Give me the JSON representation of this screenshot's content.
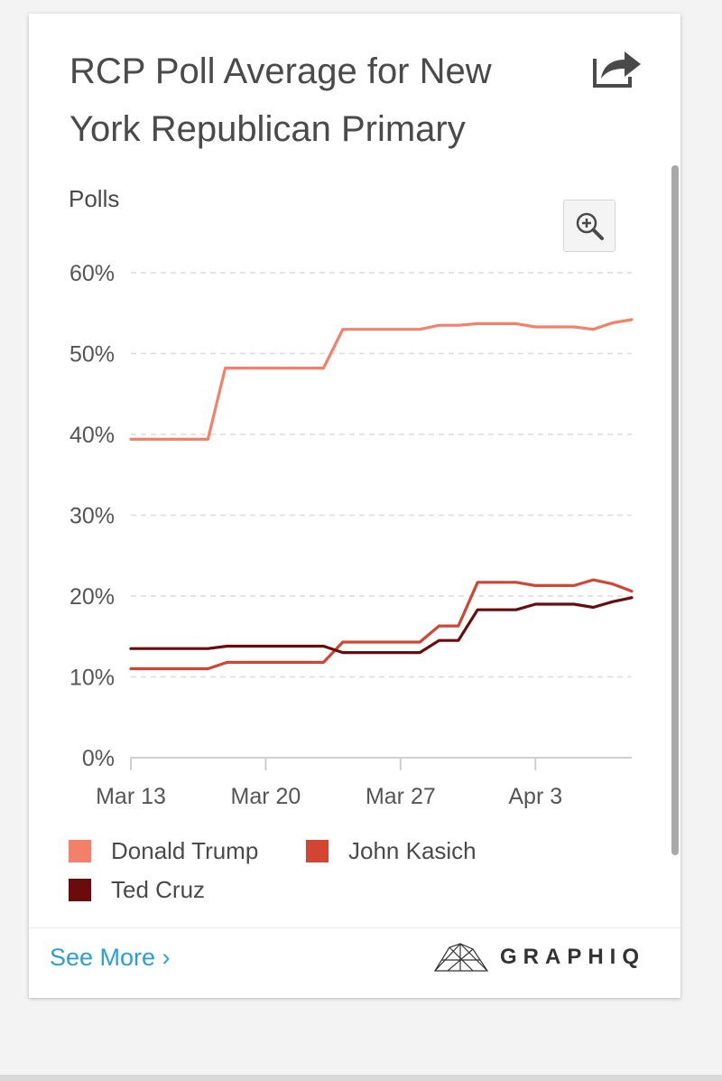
{
  "card": {
    "title": "RCP Poll Average for New York Republican Primary",
    "share_icon": "share-icon",
    "zoom_icon": "zoom-in-icon"
  },
  "chart_data": {
    "type": "line",
    "title": "RCP Poll Average for New York Republican Primary",
    "ylabel": "Polls",
    "xlabel": "",
    "ylim": [
      0,
      60
    ],
    "yticks": [
      0,
      10,
      20,
      30,
      40,
      50,
      60
    ],
    "ytick_labels": [
      "0%",
      "10%",
      "20%",
      "30%",
      "40%",
      "50%",
      "60%"
    ],
    "xticks": [
      0,
      7,
      14,
      21
    ],
    "xtick_labels": [
      "Mar 13",
      "Mar 20",
      "Mar 27",
      "Apr 3"
    ],
    "xlim": [
      0,
      26
    ],
    "grid": true,
    "legend_position": "bottom",
    "series": [
      {
        "name": "Donald Trump",
        "color": "#f4806a",
        "points": [
          [
            0,
            39.4
          ],
          [
            4,
            39.4
          ],
          [
            4.9,
            48.2
          ],
          [
            10,
            48.2
          ],
          [
            11,
            53.0
          ],
          [
            15,
            53.0
          ],
          [
            16,
            53.5
          ],
          [
            17,
            53.5
          ],
          [
            18,
            53.7
          ],
          [
            20,
            53.7
          ],
          [
            21,
            53.3
          ],
          [
            23,
            53.3
          ],
          [
            24,
            53.0
          ],
          [
            25,
            53.8
          ],
          [
            26,
            54.2
          ]
        ]
      },
      {
        "name": "John Kasich",
        "color": "#d34433",
        "points": [
          [
            0,
            11.0
          ],
          [
            4,
            11.0
          ],
          [
            5,
            11.8
          ],
          [
            10,
            11.8
          ],
          [
            11,
            14.3
          ],
          [
            15,
            14.3
          ],
          [
            16,
            16.3
          ],
          [
            17,
            16.3
          ],
          [
            18,
            21.7
          ],
          [
            20,
            21.7
          ],
          [
            21,
            21.3
          ],
          [
            23,
            21.3
          ],
          [
            24,
            22.0
          ],
          [
            25,
            21.5
          ],
          [
            26,
            20.6
          ]
        ]
      },
      {
        "name": "Ted Cruz",
        "color": "#6b0b0b",
        "points": [
          [
            0,
            13.5
          ],
          [
            4,
            13.5
          ],
          [
            5,
            13.8
          ],
          [
            10,
            13.8
          ],
          [
            11,
            13.0
          ],
          [
            15,
            13.0
          ],
          [
            16,
            14.5
          ],
          [
            17,
            14.5
          ],
          [
            18,
            18.3
          ],
          [
            20,
            18.3
          ],
          [
            21,
            19.0
          ],
          [
            23,
            19.0
          ],
          [
            24,
            18.6
          ],
          [
            25,
            19.3
          ],
          [
            26,
            19.8
          ]
        ]
      }
    ]
  },
  "legend": {
    "items": [
      {
        "label": "Donald Trump",
        "color": "#f4806a"
      },
      {
        "label": "John Kasich",
        "color": "#d34433"
      },
      {
        "label": "Ted Cruz",
        "color": "#6b0b0b"
      }
    ]
  },
  "footer": {
    "see_more": "See More ›",
    "brand": "GRAPHIQ",
    "brand_icon": "graphiq-logo-icon"
  }
}
